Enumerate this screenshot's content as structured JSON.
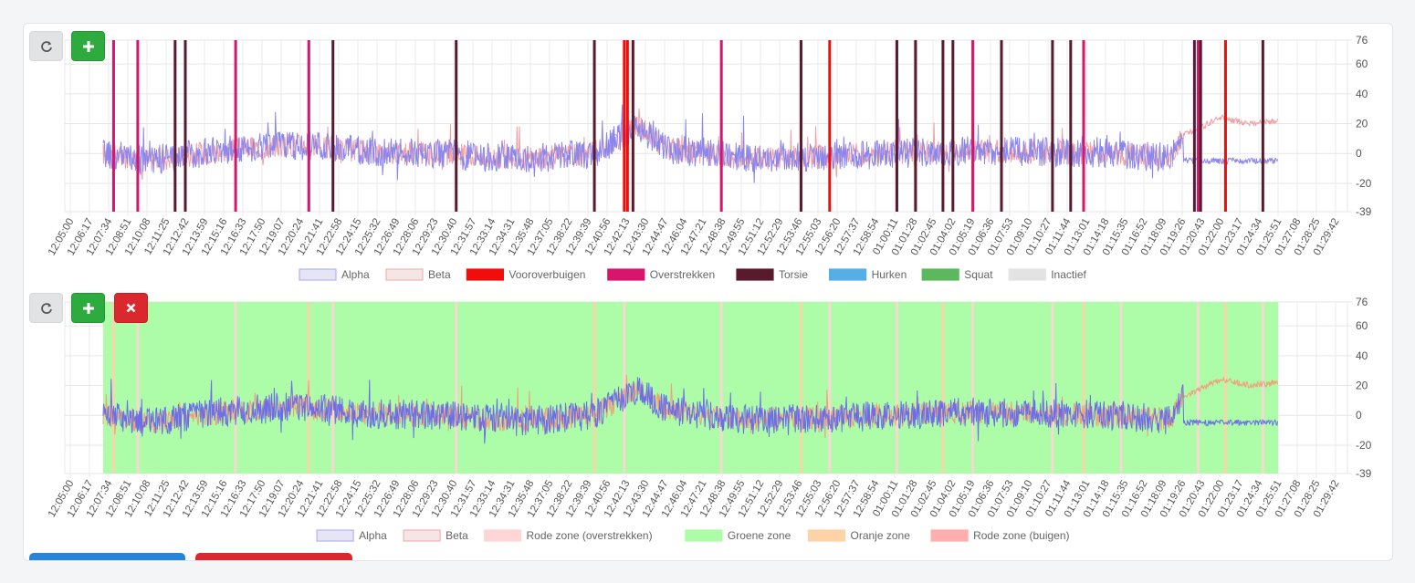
{
  "x_ticks": [
    "12:05:00",
    "12:06:17",
    "12:07:34",
    "12:08:51",
    "12:10:08",
    "12:11:25",
    "12:12:42",
    "12:13:59",
    "12:15:16",
    "12:16:33",
    "12:17:50",
    "12:19:07",
    "12:20:24",
    "12:21:41",
    "12:22:58",
    "12:24:15",
    "12:25:32",
    "12:26:49",
    "12:28:06",
    "12:29:23",
    "12:30:40",
    "12:31:57",
    "12:33:14",
    "12:34:31",
    "12:35:48",
    "12:37:05",
    "12:38:22",
    "12:39:39",
    "12:40:56",
    "12:42:13",
    "12:43:30",
    "12:44:47",
    "12:46:04",
    "12:47:21",
    "12:48:38",
    "12:49:55",
    "12:51:12",
    "12:52:29",
    "12:53:46",
    "12:55:03",
    "12:56:20",
    "12:57:37",
    "12:58:54",
    "01:00:11",
    "01:01:28",
    "01:02:45",
    "01:04:02",
    "01:05:19",
    "01:06:36",
    "01:07:53",
    "01:09:10",
    "01:10:27",
    "01:11:44",
    "01:13:01",
    "01:14:18",
    "01:15:35",
    "01:16:52",
    "01:18:09",
    "01:19:26",
    "01:20:43",
    "01:22:00",
    "01:23:17",
    "01:24:34",
    "01:25:51",
    "01:27:08",
    "01:28:25",
    "01:29:42"
  ],
  "y_ticks": [
    76,
    60,
    40,
    20,
    0,
    -20,
    -39
  ],
  "chart_data": [
    {
      "type": "line",
      "ylim": [
        -39,
        76
      ],
      "series": [
        {
          "name": "Alpha",
          "color": "#8a86ee",
          "legend_fill": "#e6e5f5",
          "legend_stroke": "#b5b3f0"
        },
        {
          "name": "Beta",
          "color": "#f0a0a6",
          "legend_fill": "#f5e5e5",
          "legend_stroke": "#efb3b3"
        }
      ],
      "value_profile": {
        "x_range": [
          "12:07:12",
          "01:25:51"
        ],
        "points": [
          [
            "12:07:12",
            0
          ],
          [
            "12:10:00",
            -5
          ],
          [
            "12:15:00",
            2
          ],
          [
            "12:20:00",
            6
          ],
          [
            "12:25:00",
            1
          ],
          [
            "12:30:00",
            0
          ],
          [
            "12:35:00",
            -4
          ],
          [
            "12:40:00",
            0
          ],
          [
            "12:43:00",
            18
          ],
          [
            "12:45:00",
            3
          ],
          [
            "12:50:00",
            -3
          ],
          [
            "12:55:00",
            -2
          ],
          [
            "01:00:00",
            0
          ],
          [
            "01:05:00",
            2
          ],
          [
            "01:10:00",
            1
          ],
          [
            "01:15:00",
            0
          ],
          [
            "01:18:40",
            -3
          ],
          [
            "01:19:30",
            12
          ],
          [
            "01:22:00",
            24
          ],
          [
            "01:24:00",
            20
          ],
          [
            "01:25:51",
            22
          ]
        ],
        "alpha_late_level": -5
      },
      "events": [
        {
          "name": "Vooroverbuigen",
          "color": "#f20d0d",
          "times": [
            "12:42:05",
            "12:42:18",
            "12:55:50",
            "01:22:20"
          ]
        },
        {
          "name": "Overstrekken",
          "color": "#d6156b",
          "times": [
            "12:07:54",
            "12:09:31",
            "12:16:04",
            "12:20:58",
            "12:48:35",
            "01:05:25",
            "01:12:50",
            "01:20:30"
          ]
        },
        {
          "name": "Torsie",
          "color": "#5a1a2e",
          "times": [
            "12:12:01",
            "12:12:42",
            "12:22:35",
            "12:30:50",
            "12:40:05",
            "12:42:40",
            "12:53:55",
            "01:00:20",
            "01:01:35",
            "01:03:25",
            "01:04:05",
            "01:07:20",
            "01:10:45",
            "01:11:58",
            "01:20:15",
            "01:20:40",
            "01:24:50"
          ]
        },
        {
          "name": "Hurken",
          "color": "#55aee6",
          "times": []
        },
        {
          "name": "Squat",
          "color": "#5cb85c",
          "times": []
        },
        {
          "name": "Inactief",
          "color": "#e3e3e3",
          "times": []
        }
      ]
    },
    {
      "type": "area",
      "ylim": [
        -39,
        76
      ],
      "series": [
        {
          "name": "Alpha",
          "color": "#6b6ee8",
          "legend_fill": "#e6e5f5",
          "legend_stroke": "#b5b3f0"
        },
        {
          "name": "Beta",
          "color": "#f0a07a",
          "legend_fill": "#f5e5e5",
          "legend_stroke": "#efb3b3"
        }
      ],
      "zones": [
        {
          "name": "Rode zone (overstrekken)",
          "color": "#ffd5d5"
        },
        {
          "name": "Groene zone",
          "color": "#adfca8"
        },
        {
          "name": "Oranje zone",
          "color": "#ffd2a8"
        },
        {
          "name": "Rode zone (buigen)",
          "color": "#ffadad"
        }
      ],
      "green_zone_range": [
        "12:07:12",
        "01:25:51"
      ],
      "stripe_times": [
        "12:07:54",
        "12:09:31",
        "12:16:04",
        "12:20:58",
        "12:22:35",
        "12:30:50",
        "12:40:05",
        "12:42:05",
        "12:48:35",
        "12:53:55",
        "12:55:50",
        "01:00:20",
        "01:03:25",
        "01:05:25",
        "01:10:45",
        "01:12:50",
        "01:15:20",
        "01:20:30",
        "01:22:20",
        "01:24:50"
      ]
    }
  ]
}
